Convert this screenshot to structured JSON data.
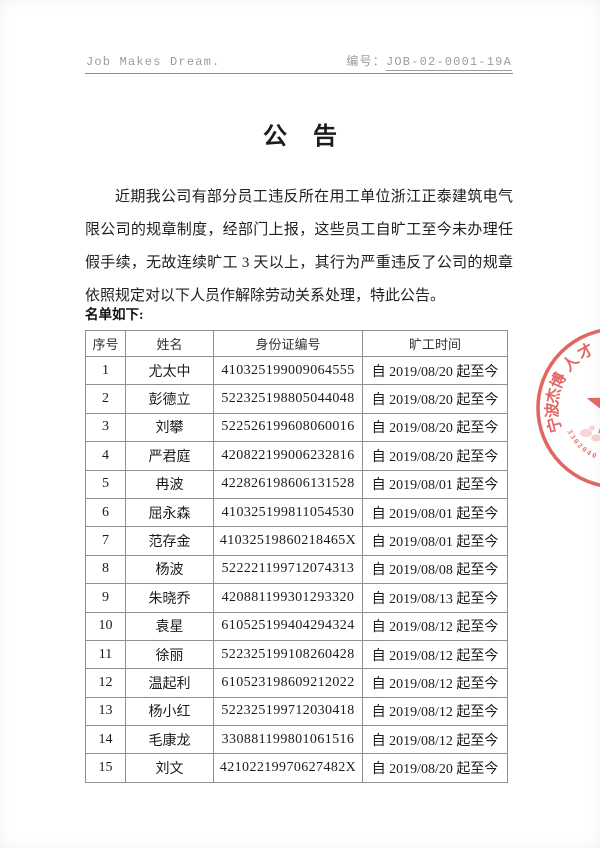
{
  "page": {
    "background": "#ffffff",
    "text_color": "#1f1f1f",
    "muted_gray": "#9b9b9b",
    "stamp_red": "#dd544d"
  },
  "header": {
    "slogan": "Job Makes Dream.",
    "number_label": "编号：",
    "number_value": "JOB-02-0001-19A"
  },
  "title": "公 告",
  "body": {
    "lines": [
      "近期我公司有部分员工违反所在用工单位浙江正泰建筑电气有",
      "限公司的规章制度，经部门上报，这些员工自旷工至今未办理任何请",
      "假手续，无故连续旷工 3 天以上，其行为严重违反了公司的规章制度，",
      "依照规定对以下人员作解除劳动关系处理，特此公告。"
    ],
    "list_label": "名单如下:"
  },
  "table": {
    "headers": [
      "序号",
      "姓名",
      "身份证编号",
      "旷工时间"
    ],
    "rows": [
      [
        "1",
        "尤太中",
        "410325199009064555",
        "自 2019/08/20 起至今"
      ],
      [
        "2",
        "彭德立",
        "522325198805044048",
        "自 2019/08/20 起至今"
      ],
      [
        "3",
        "刘攀",
        "522526199608060016",
        "自 2019/08/20 起至今"
      ],
      [
        "4",
        "严君庭",
        "420822199006232816",
        "自 2019/08/20 起至今"
      ],
      [
        "5",
        "冉波",
        "422826198606131528",
        "自 2019/08/01 起至今"
      ],
      [
        "6",
        "屈永森",
        "410325199811054530",
        "自 2019/08/01 起至今"
      ],
      [
        "7",
        "范存金",
        "41032519860218465X",
        "自 2019/08/01 起至今"
      ],
      [
        "8",
        "杨波",
        "522221199712074313",
        "自 2019/08/08 起至今"
      ],
      [
        "9",
        "朱晓乔",
        "420881199301293320",
        "自 2019/08/13 起至今"
      ],
      [
        "10",
        "袁星",
        "610525199404294324",
        "自 2019/08/12 起至今"
      ],
      [
        "11",
        "徐丽",
        "522325199108260428",
        "自 2019/08/12 起至今"
      ],
      [
        "12",
        "温起利",
        "610523198609212022",
        "自 2019/08/12 起至今"
      ],
      [
        "13",
        "杨小红",
        "522325199712030418",
        "自 2019/08/12 起至今"
      ],
      [
        "14",
        "毛康龙",
        "330881199801061516",
        "自 2019/08/12 起至今"
      ],
      [
        "15",
        "刘文",
        "42102219970627482X",
        "自 2019/08/20 起至今"
      ]
    ]
  },
  "stamp": {
    "chars": [
      "宁",
      "波",
      "杰",
      "博",
      "人",
      "才"
    ],
    "serial": "3302040",
    "color": "#dd544d"
  }
}
